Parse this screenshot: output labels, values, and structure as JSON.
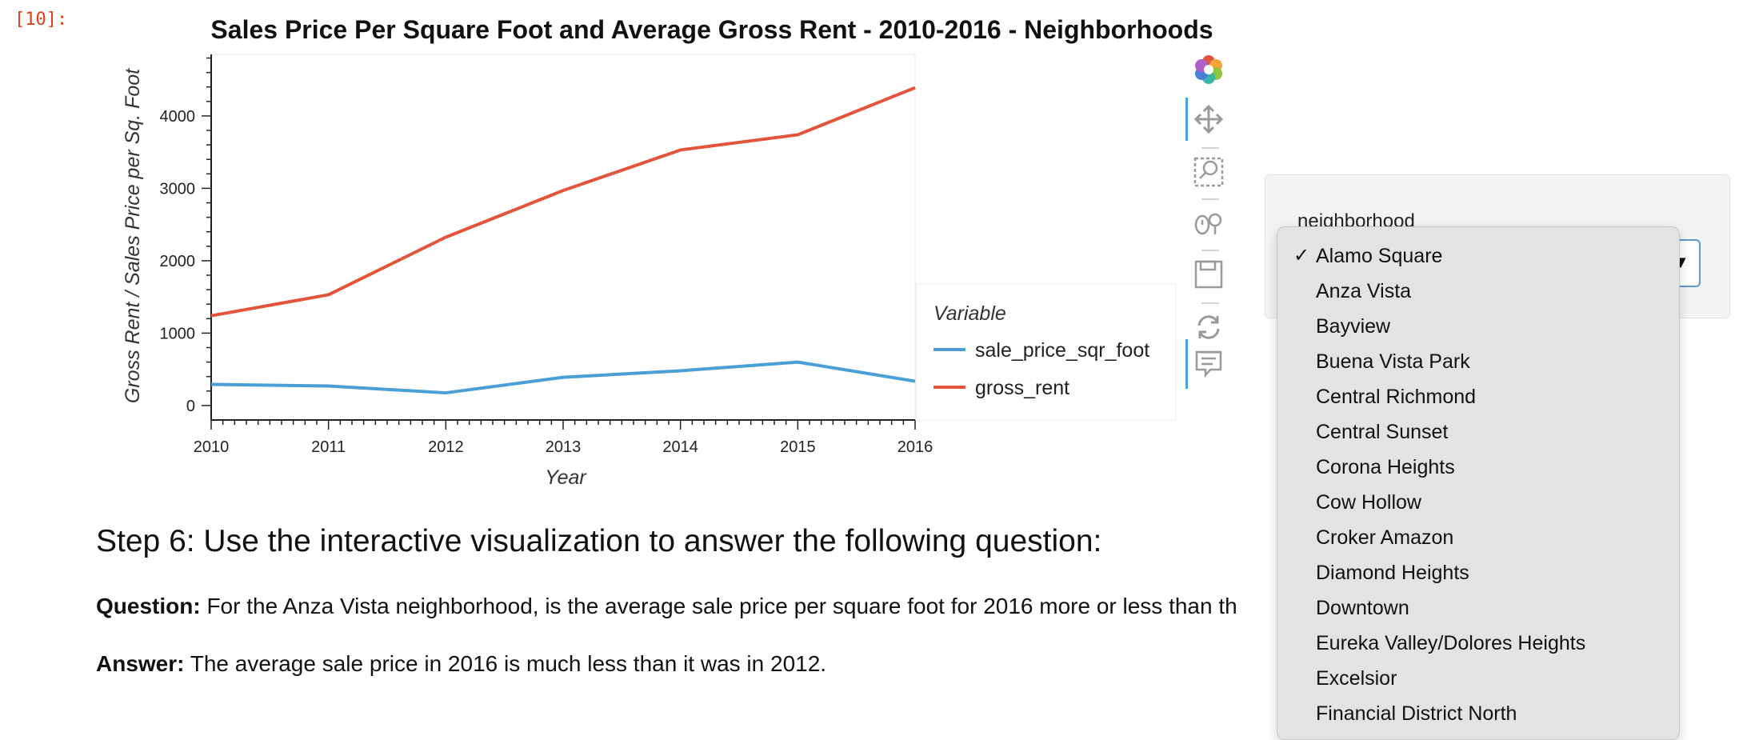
{
  "cell_prompt": "[10]:",
  "chart_data": {
    "type": "line",
    "title": "Sales Price Per Square Foot and Average Gross Rent - 2010-2016 - Neighborhoods",
    "xlabel": "Year",
    "ylabel": "Gross Rent / Sales Price per Sq. Foot",
    "x": [
      2010,
      2011,
      2012,
      2013,
      2014,
      2015,
      2016
    ],
    "xlim": [
      2010,
      2016
    ],
    "ylim": [
      -200,
      4850
    ],
    "y_ticks": [
      0,
      1000,
      2000,
      3000,
      4000
    ],
    "x_ticks": [
      2010,
      2011,
      2012,
      2013,
      2014,
      2015,
      2016
    ],
    "grid": false,
    "legend_title": "Variable",
    "legend_position": "right",
    "series": [
      {
        "name": "sale_price_sqr_foot",
        "color": "#4a9fd6",
        "values": [
          292,
          270,
          175,
          390,
          480,
          600,
          335
        ]
      },
      {
        "name": "gross_rent",
        "color": "#e2553a",
        "values": [
          1240,
          1530,
          2325,
          2970,
          3530,
          3740,
          4390
        ]
      }
    ]
  },
  "toolbar": {
    "icons": [
      "bokeh-logo-icon",
      "pan-icon",
      "box-zoom-icon",
      "wheel-zoom-icon",
      "save-icon",
      "reset-icon",
      "hover-icon"
    ]
  },
  "widget": {
    "label": "neighborhood",
    "selected": "Alamo Square"
  },
  "dropdown": {
    "check_mark": "✓",
    "options": [
      "Alamo Square",
      "Anza Vista",
      "Bayview",
      "Buena Vista Park",
      "Central Richmond",
      "Central Sunset",
      "Corona Heights",
      "Cow Hollow",
      "Croker Amazon",
      "Diamond Heights",
      "Downtown",
      "Eureka Valley/Dolores Heights",
      "Excelsior",
      "Financial District North"
    ]
  },
  "content": {
    "step_heading": "Step 6: Use the interactive visualization to answer the following question:",
    "question_label": "Question:",
    "question_text": " For the Anza Vista neighborhood, is the average sale price per square foot for 2016 more or less than th",
    "answer_label": "Answer:",
    "answer_text": " The average sale price in 2016 is much less than it was in 2012."
  }
}
